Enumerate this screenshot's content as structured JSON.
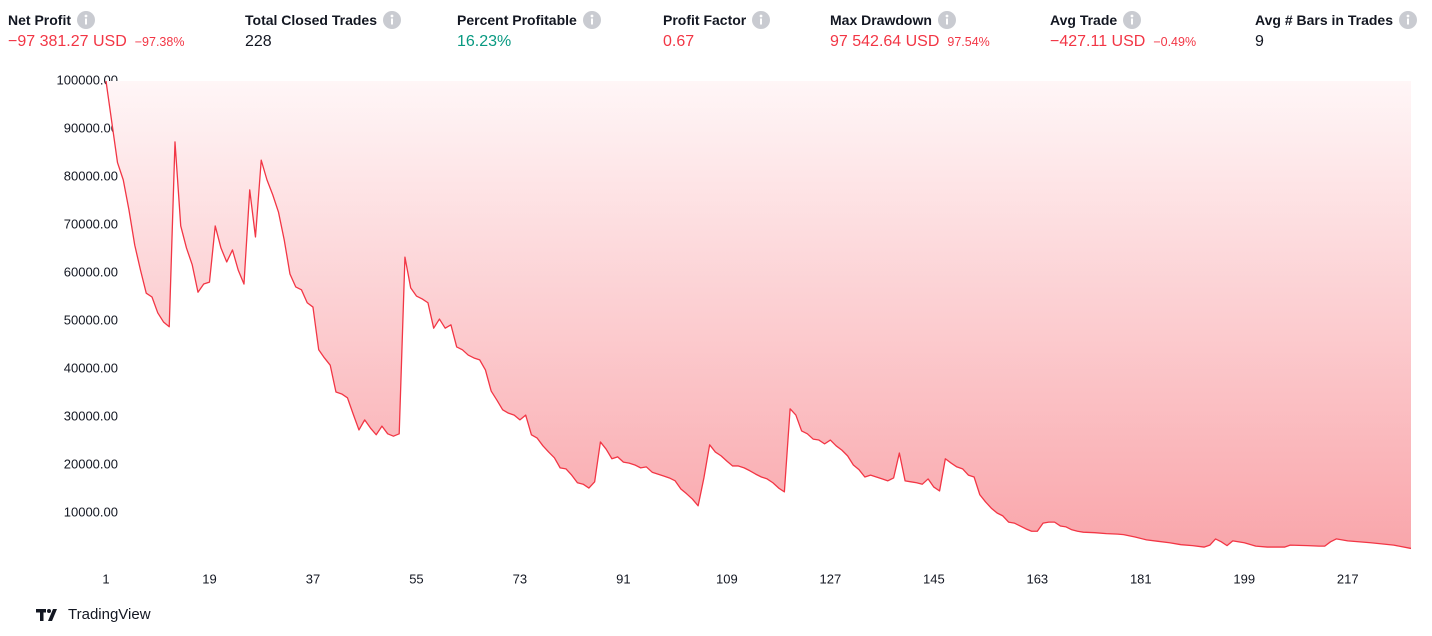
{
  "stats": [
    {
      "label": "Net Profit",
      "value": "−97 381.27 USD",
      "percent": "−97.38%",
      "color": "#f23645"
    },
    {
      "label": "Total Closed Trades",
      "value": "228",
      "color": "#131722"
    },
    {
      "label": "Percent Profitable",
      "value": "16.23%",
      "color": "#089981"
    },
    {
      "label": "Profit Factor",
      "value": "0.67",
      "color": "#f23645"
    },
    {
      "label": "Max Drawdown",
      "value": "97 542.64 USD",
      "percent": "97.54%",
      "color": "#f23645"
    },
    {
      "label": "Avg Trade",
      "value": "−427.11 USD",
      "percent": "−0.49%",
      "color": "#f23645"
    },
    {
      "label": "Avg # Bars in Trades",
      "value": "9",
      "color": "#131722"
    }
  ],
  "chart_data": {
    "type": "area",
    "x": [
      1,
      3,
      4,
      5,
      6,
      7,
      8,
      9,
      10,
      11,
      12,
      13,
      14,
      15,
      16,
      17,
      18,
      19,
      20,
      21,
      22,
      23,
      24,
      25,
      26,
      27,
      28,
      29,
      30,
      31,
      32,
      33,
      34,
      35,
      36,
      37,
      38,
      39,
      40,
      41,
      42,
      43,
      44,
      45,
      46,
      47,
      48,
      49,
      50,
      51,
      52,
      53,
      54,
      55,
      56,
      57,
      58,
      59,
      60,
      61,
      62,
      63,
      64,
      65,
      66,
      67,
      68,
      69,
      70,
      71,
      72,
      73,
      74,
      75,
      76,
      77,
      78,
      79,
      80,
      81,
      82,
      83,
      84,
      85,
      86,
      87,
      88,
      89,
      90,
      91,
      92,
      93,
      94,
      95,
      96,
      97,
      98,
      99,
      100,
      101,
      102,
      103,
      104,
      105,
      106,
      107,
      108,
      109,
      110,
      111,
      112,
      113,
      114,
      115,
      116,
      117,
      118,
      119,
      120,
      121,
      122,
      123,
      124,
      125,
      126,
      127,
      128,
      129,
      130,
      131,
      132,
      133,
      134,
      135,
      136,
      137,
      138,
      139,
      140,
      141,
      142,
      143,
      144,
      145,
      146,
      147,
      148,
      149,
      150,
      151,
      152,
      153,
      154,
      155,
      156,
      157,
      158,
      159,
      160,
      161,
      162,
      163,
      164,
      165,
      166,
      167,
      168,
      169,
      170,
      171,
      173,
      175,
      177,
      178,
      180,
      182,
      184,
      186,
      188,
      190,
      192,
      193,
      194,
      195,
      196,
      197,
      199,
      201,
      203,
      206,
      207,
      210,
      212,
      213,
      214,
      215,
      217,
      221,
      225,
      228
    ],
    "values": [
      100000,
      83000,
      79400,
      73100,
      65800,
      60600,
      55800,
      55000,
      51700,
      49800,
      48800,
      87300,
      69800,
      65200,
      61700,
      56000,
      57700,
      58100,
      69800,
      65200,
      62300,
      64800,
      60600,
      57700,
      77300,
      67500,
      83500,
      79400,
      76300,
      72700,
      66900,
      59800,
      57100,
      56500,
      53800,
      52900,
      44000,
      42300,
      40800,
      35200,
      34800,
      34000,
      30600,
      27300,
      29400,
      27700,
      26300,
      28100,
      26500,
      26000,
      26500,
      63300,
      56900,
      55200,
      54600,
      53800,
      48500,
      50400,
      48500,
      49200,
      44600,
      44000,
      42900,
      42300,
      41900,
      39800,
      35400,
      33500,
      31500,
      30800,
      30400,
      29400,
      30400,
      26300,
      25600,
      24000,
      22700,
      21500,
      19400,
      19200,
      17900,
      16300,
      16000,
      15200,
      16500,
      24800,
      23300,
      21300,
      21700,
      20600,
      20400,
      20000,
      19400,
      19600,
      18500,
      18100,
      17700,
      17300,
      16700,
      15000,
      14000,
      12900,
      11500,
      17300,
      24200,
      22700,
      21900,
      20800,
      19800,
      19800,
      19400,
      18800,
      18100,
      17500,
      17100,
      16300,
      15200,
      14400,
      31700,
      30400,
      27100,
      26500,
      25400,
      25200,
      24400,
      25200,
      24000,
      23100,
      21900,
      20000,
      19000,
      17500,
      17900,
      17500,
      17100,
      16700,
      17300,
      22500,
      16700,
      16500,
      16300,
      16000,
      17100,
      15400,
      14600,
      21300,
      20400,
      19600,
      19200,
      17900,
      17500,
      13800,
      12300,
      11000,
      10000,
      9400,
      8100,
      7900,
      7300,
      6700,
      6200,
      6200,
      7900,
      8100,
      8100,
      7300,
      7100,
      6500,
      6200,
      6000,
      5900,
      5700,
      5600,
      5500,
      5000,
      4400,
      4100,
      3800,
      3400,
      3200,
      2900,
      3300,
      4600,
      4000,
      3200,
      4200,
      3800,
      3100,
      2900,
      2900,
      3300,
      3200,
      3100,
      3100,
      4000,
      4600,
      4200,
      3800,
      3300,
      2619
    ],
    "color": "#f23645",
    "fill_colors": [
      "#fff6f7",
      "#f9a6ab"
    ],
    "xlim": [
      1,
      228
    ],
    "xticks": [
      1,
      19,
      37,
      55,
      73,
      91,
      109,
      127,
      145,
      163,
      181,
      199,
      217
    ],
    "ylim": [
      0,
      100000
    ],
    "yticks": [
      {
        "value": 10000,
        "label": "10000.00"
      },
      {
        "value": 20000,
        "label": "20000.00"
      },
      {
        "value": 30000,
        "label": "30000.00"
      },
      {
        "value": 40000,
        "label": "40000.00"
      },
      {
        "value": 50000,
        "label": "50000.00"
      },
      {
        "value": 60000,
        "label": "60000.00"
      },
      {
        "value": 70000,
        "label": "70000.00"
      },
      {
        "value": 80000,
        "label": "80000.00"
      },
      {
        "value": 90000,
        "label": "90000.00"
      },
      {
        "value": 100000,
        "label": "100000.00"
      }
    ]
  },
  "footer": {
    "brand": "TradingView"
  }
}
